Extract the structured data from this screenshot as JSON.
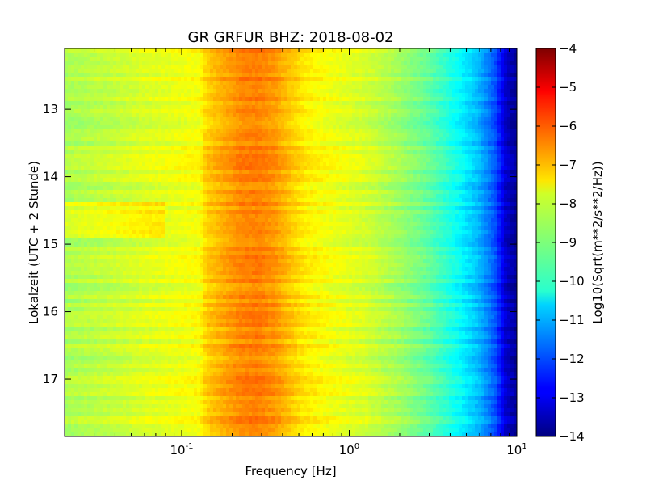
{
  "chart_data": {
    "type": "heatmap",
    "title": "GR GRFUR BHZ: 2018-08-02",
    "xlabel": "Frequency [Hz]",
    "ylabel": "Lokalzeit (UTC + 2 Stunde)",
    "x_scale": "log",
    "xlim": [
      0.02,
      10
    ],
    "x_ticks": [
      {
        "value": 0.1,
        "base": "10",
        "exp": "-1"
      },
      {
        "value": 1,
        "base": "10",
        "exp": "0"
      },
      {
        "value": 10,
        "base": "10",
        "exp": "1"
      }
    ],
    "ylim": [
      12.1,
      17.85
    ],
    "y_inverted": true,
    "y_ticks": [
      {
        "value": 13,
        "label": "13"
      },
      {
        "value": 14,
        "label": "14"
      },
      {
        "value": 15,
        "label": "15"
      },
      {
        "value": 16,
        "label": "16"
      },
      {
        "value": 17,
        "label": "17"
      }
    ],
    "colorbar": {
      "label": "Log10(Sqrt(m**2/s**2/Hz))",
      "range": [
        -14,
        -4
      ],
      "colormap": "jet",
      "ticks": [
        {
          "value": -4,
          "label": "−4"
        },
        {
          "value": -5,
          "label": "−5"
        },
        {
          "value": -6,
          "label": "−6"
        },
        {
          "value": -7,
          "label": "−7"
        },
        {
          "value": -8,
          "label": "−8"
        },
        {
          "value": -9,
          "label": "−9"
        },
        {
          "value": -10,
          "label": "−10"
        },
        {
          "value": -11,
          "label": "−11"
        },
        {
          "value": -12,
          "label": "−12"
        },
        {
          "value": -13,
          "label": "−13"
        },
        {
          "value": -14,
          "label": "−14"
        }
      ]
    },
    "spectrum_profile": [
      {
        "f": 0.02,
        "v": -8.6
      },
      {
        "f": 0.04,
        "v": -8.3
      },
      {
        "f": 0.06,
        "v": -8.1
      },
      {
        "f": 0.08,
        "v": -8.0
      },
      {
        "f": 0.13,
        "v": -7.8
      },
      {
        "f": 0.14,
        "v": -7.3
      },
      {
        "f": 0.18,
        "v": -6.9
      },
      {
        "f": 0.22,
        "v": -6.6
      },
      {
        "f": 0.28,
        "v": -6.5
      },
      {
        "f": 0.35,
        "v": -6.7
      },
      {
        "f": 0.45,
        "v": -7.2
      },
      {
        "f": 0.55,
        "v": -7.6
      },
      {
        "f": 0.8,
        "v": -7.9
      },
      {
        "f": 1.3,
        "v": -8.2
      },
      {
        "f": 2.0,
        "v": -8.7
      },
      {
        "f": 3.0,
        "v": -9.3
      },
      {
        "f": 4.5,
        "v": -10.2
      },
      {
        "f": 6.0,
        "v": -11.0
      },
      {
        "f": 7.5,
        "v": -12.0
      },
      {
        "f": 8.5,
        "v": -13.2
      },
      {
        "f": 10.0,
        "v": -13.8
      }
    ]
  }
}
